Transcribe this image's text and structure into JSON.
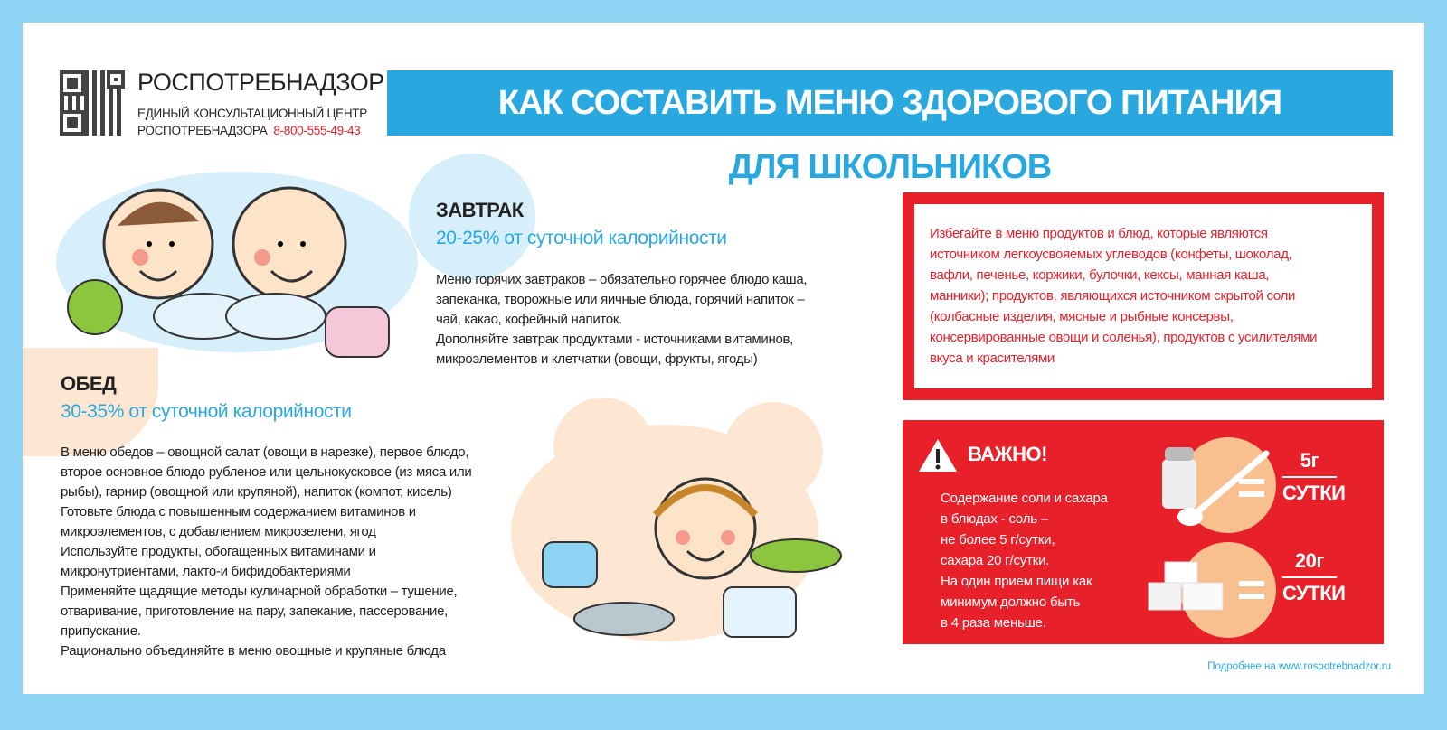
{
  "header": {
    "org_name": "РОСПОТРЕБНАДЗОР",
    "center_line1": "ЕДИНЫЙ КОНСУЛЬТАЦИОННЫЙ ЦЕНТР",
    "center_line2": "РОСПОТРЕБНАДЗОРА",
    "phone": "8-800-555-49-43",
    "title": "КАК СОСТАВИТЬ МЕНЮ ЗДОРОВОГО ПИТАНИЯ",
    "subtitle": "ДЛЯ ШКОЛЬНИКОВ"
  },
  "breakfast": {
    "title": "ЗАВТРАК",
    "calories": "20-25% от суточной калорийности",
    "lines": [
      "Меню горячих завтраков – обязательно горячее блюдо каша,",
      "запеканка, творожные или яичные блюда, горячий напиток –",
      "чай, какао, кофейный напиток.",
      "Дополняйте завтрак продуктами - источниками витаминов,",
      "микроэлементов и клетчатки (овощи, фрукты, ягоды)"
    ]
  },
  "lunch": {
    "title": "ОБЕД",
    "calories": "30-35% от суточной калорийности",
    "lines": [
      "В меню обедов – овощной салат (овощи в нарезке), первое блюдо,",
      "второе основное блюдо рубленое или цельнокусковое (из мяса или",
      "рыбы), гарнир (овощной или крупяной), напиток (компот, кисель)",
      "Готовьте блюда с повышенным содержанием витаминов и",
      "микроэлементов, с добавлением микрозелени, ягод",
      "Используйте продукты, обогащенных витаминами и",
      "микронутриентами, лакто-и бифидобактериями",
      "Применяйте щадящие методы кулинарной обработки – тушение,",
      "отваривание, приготовление на пару, запекание, пассерование,",
      "припускание.",
      "Рационально объединяйте в меню овощные и крупяные блюда"
    ]
  },
  "avoid": {
    "lines": [
      "Избегайте в меню продуктов и блюд, которые являются",
      "источником легкоусвояемых углеводов (конфеты, шоколад,",
      "вафли, печенье, коржики, булочки, кексы, манная каша,",
      "манники); продуктов, являющихся источником скрытой соли",
      "(колбасные изделия, мясные и рыбные консервы,",
      "консервированные овощи и соленья), продуктов с усилителями",
      "вкуса и красителями"
    ]
  },
  "important": {
    "title": "ВАЖНО!",
    "lines": [
      "Содержание соли и сахара",
      "в блюдах -  соль –",
      "не более 5 г/сутки,",
      "сахара 20 г/сутки.",
      "На один прием пищи как",
      "минимум должно быть",
      "в 4 раза меньше."
    ],
    "salt": {
      "amount": "5г",
      "unit": "СУТКИ"
    },
    "sugar": {
      "amount": "20г",
      "unit": "СУТКИ"
    }
  },
  "footer": {
    "link": "Подробнее на www.rospotrebnadzor.ru"
  },
  "colors": {
    "blue": "#29a8e0",
    "red": "#e8202a",
    "frame": "#8fd3f4",
    "peach": "#f7c08e"
  }
}
